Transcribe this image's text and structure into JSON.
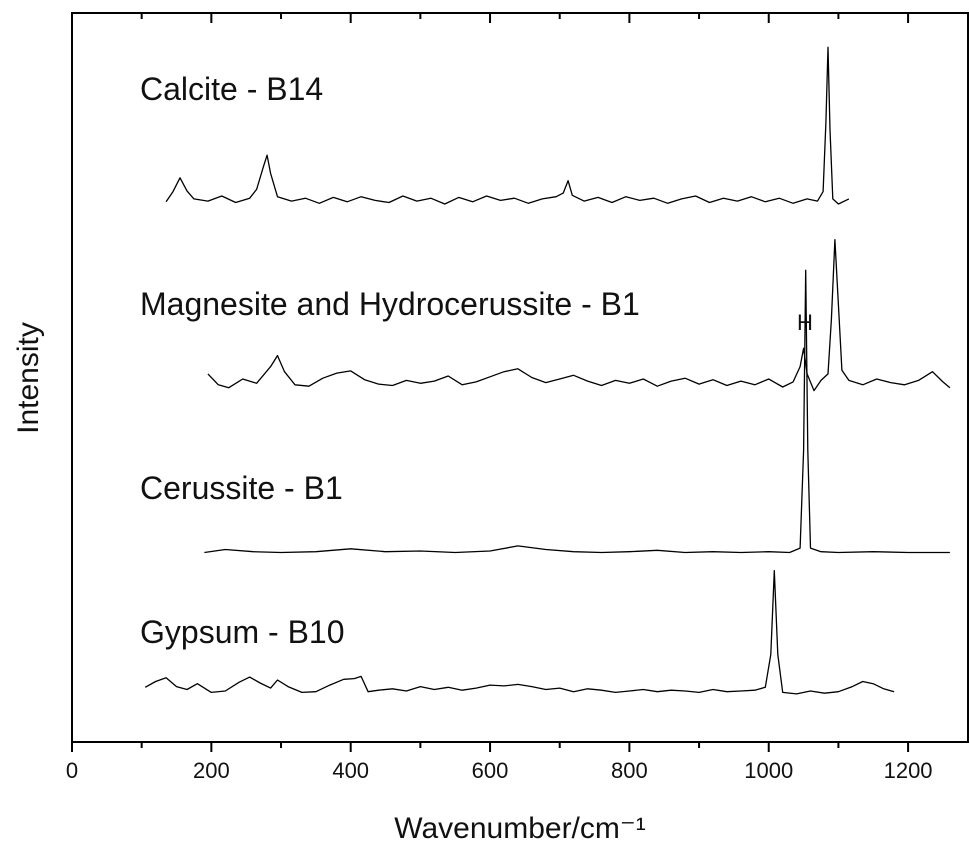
{
  "chart_data": {
    "type": "line",
    "xlabel": "Wavenumber/cm⁻¹",
    "ylabel": "Intensity",
    "xlim": [
      0,
      1286
    ],
    "xticks": [
      0,
      200,
      400,
      600,
      800,
      1000,
      1200
    ],
    "xminorticks": [
      100,
      300,
      500,
      700,
      900,
      1100
    ],
    "ylim": [
      0,
      100
    ],
    "series": [
      {
        "name": "Calcite - B14",
        "color": "#000000",
        "x": [
          135,
          145,
          155,
          165,
          175,
          195,
          215,
          235,
          255,
          265,
          275,
          280,
          285,
          295,
          315,
          335,
          355,
          375,
          395,
          415,
          435,
          455,
          475,
          495,
          515,
          535,
          555,
          575,
          595,
          615,
          635,
          655,
          675,
          695,
          705,
          712,
          718,
          735,
          755,
          775,
          795,
          815,
          835,
          855,
          875,
          895,
          915,
          935,
          955,
          975,
          995,
          1015,
          1035,
          1055,
          1070,
          1078,
          1082,
          1085,
          1088,
          1092,
          1100,
          1115
        ],
        "values": [
          74.1,
          75.5,
          77.4,
          75.6,
          74.5,
          74.2,
          74.9,
          74.0,
          74.6,
          75.8,
          79.0,
          80.5,
          78.0,
          74.8,
          74.2,
          74.6,
          73.9,
          74.7,
          74.1,
          74.8,
          74.3,
          74.0,
          74.9,
          74.2,
          74.6,
          73.8,
          74.7,
          74.1,
          74.9,
          74.3,
          74.6,
          73.9,
          74.5,
          74.8,
          75.3,
          77.0,
          75.0,
          74.2,
          74.7,
          74.0,
          74.8,
          74.3,
          74.6,
          73.9,
          74.5,
          74.9,
          74.0,
          74.6,
          74.2,
          74.8,
          74.1,
          74.6,
          73.9,
          74.5,
          74.2,
          75.5,
          85.0,
          95.3,
          84.0,
          74.5,
          73.8,
          74.5
        ]
      },
      {
        "name": "Magnesite and Hydrocerussite - B1",
        "color": "#000000",
        "x": [
          195,
          210,
          225,
          245,
          265,
          285,
          295,
          305,
          320,
          340,
          360,
          380,
          400,
          420,
          440,
          460,
          480,
          500,
          520,
          540,
          560,
          580,
          600,
          620,
          640,
          660,
          680,
          700,
          720,
          740,
          760,
          780,
          800,
          820,
          840,
          860,
          880,
          900,
          920,
          940,
          960,
          980,
          1000,
          1020,
          1035,
          1045,
          1050,
          1055,
          1065,
          1075,
          1085,
          1090,
          1095,
          1100,
          1105,
          1115,
          1135,
          1155,
          1175,
          1195,
          1215,
          1235,
          1250,
          1260
        ],
        "values": [
          50.5,
          49.0,
          48.6,
          49.8,
          49.2,
          51.5,
          53.0,
          50.8,
          49.0,
          48.8,
          49.9,
          50.6,
          50.9,
          49.7,
          49.1,
          48.9,
          49.6,
          49.2,
          49.5,
          50.2,
          49.0,
          49.4,
          50.1,
          50.8,
          51.2,
          50.0,
          49.3,
          49.8,
          50.3,
          49.5,
          48.9,
          49.6,
          49.2,
          49.8,
          48.8,
          49.5,
          49.9,
          49.1,
          49.7,
          48.9,
          49.5,
          49.0,
          49.8,
          48.7,
          49.4,
          51.5,
          54.0,
          50.5,
          48.2,
          49.6,
          50.5,
          58.0,
          68.9,
          60.0,
          51.0,
          49.6,
          49.0,
          49.8,
          49.3,
          49.0,
          49.6,
          50.8,
          49.4,
          48.6
        ]
      },
      {
        "name": "Cerussite - B1",
        "color": "#000000",
        "x": [
          190,
          220,
          260,
          300,
          350,
          400,
          450,
          500,
          550,
          600,
          640,
          680,
          720,
          760,
          800,
          840,
          880,
          920,
          960,
          1000,
          1030,
          1045,
          1050,
          1053,
          1056,
          1060,
          1075,
          1100,
          1150,
          1200,
          1260
        ],
        "values": [
          26.0,
          26.4,
          26.1,
          26.0,
          26.1,
          26.5,
          26.1,
          26.2,
          26.0,
          26.2,
          26.9,
          26.4,
          26.1,
          26.0,
          26.1,
          26.3,
          26.0,
          26.1,
          26.0,
          26.1,
          26.0,
          26.6,
          40.0,
          64.7,
          40.0,
          26.6,
          26.1,
          26.0,
          26.1,
          26.0,
          26.0
        ]
      },
      {
        "name": "Gypsum - B10",
        "color": "#000000",
        "x": [
          105,
          120,
          135,
          150,
          165,
          180,
          200,
          220,
          240,
          255,
          270,
          285,
          295,
          310,
          330,
          350,
          370,
          390,
          405,
          415,
          425,
          440,
          460,
          480,
          500,
          520,
          540,
          560,
          580,
          600,
          620,
          640,
          660,
          680,
          700,
          720,
          740,
          760,
          780,
          800,
          820,
          840,
          860,
          880,
          900,
          920,
          940,
          960,
          980,
          995,
          1003,
          1008,
          1013,
          1020,
          1040,
          1060,
          1080,
          1100,
          1120,
          1135,
          1150,
          1165,
          1180
        ],
        "values": [
          7.5,
          8.3,
          8.8,
          7.6,
          7.2,
          8.0,
          6.8,
          7.0,
          8.2,
          8.9,
          8.1,
          7.4,
          8.5,
          7.6,
          6.8,
          6.9,
          7.8,
          8.6,
          8.7,
          9.0,
          6.9,
          7.1,
          7.3,
          7.0,
          7.6,
          7.2,
          7.5,
          7.1,
          7.4,
          7.8,
          7.7,
          7.9,
          7.6,
          7.2,
          7.4,
          6.9,
          7.3,
          7.1,
          6.8,
          7.0,
          7.2,
          6.9,
          7.1,
          7.0,
          6.8,
          7.2,
          6.9,
          7.0,
          7.1,
          7.5,
          12.0,
          23.5,
          12.0,
          6.8,
          6.6,
          7.0,
          6.7,
          6.9,
          7.6,
          8.3,
          8.0,
          7.3,
          6.9
        ]
      }
    ],
    "annotations": [
      "H"
    ]
  }
}
